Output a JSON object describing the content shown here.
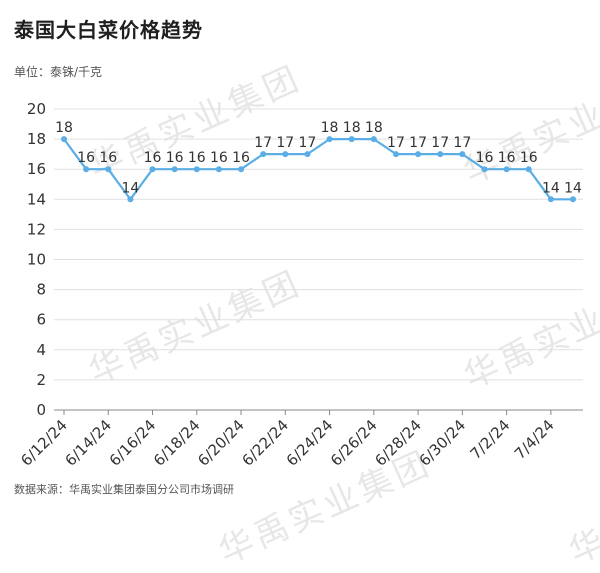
{
  "title": "泰国大白菜价格趋势",
  "unit_label": "单位：泰铢/千克",
  "source": "数据来源：华禹实业集团泰国分公司市场调研",
  "watermark": "华禹实业集团",
  "colors": {
    "line": "#5aaee5",
    "grid": "#e0e0e0",
    "axis": "#888888"
  },
  "chart_data": {
    "type": "line",
    "title": "泰国大白菜价格趋势",
    "ylabel": "单位：泰铢/千克",
    "ylim": [
      0,
      20
    ],
    "yticks": [
      0,
      2,
      4,
      6,
      8,
      10,
      12,
      14,
      16,
      18,
      20
    ],
    "grid": true,
    "x": [
      "6/12/24",
      "6/13/24",
      "6/14/24",
      "6/15/24",
      "6/16/24",
      "6/17/24",
      "6/18/24",
      "6/19/24",
      "6/20/24",
      "6/21/24",
      "6/22/24",
      "6/23/24",
      "6/24/24",
      "6/25/24",
      "6/26/24",
      "6/27/24",
      "6/28/24",
      "6/29/24",
      "6/30/24",
      "7/1/24",
      "7/2/24",
      "7/3/24",
      "7/4/24",
      "7/5/24"
    ],
    "xtick_labels": [
      "6/12/24",
      "6/14/24",
      "6/16/24",
      "6/18/24",
      "6/20/24",
      "6/22/24",
      "6/24/24",
      "6/26/24",
      "6/28/24",
      "6/30/24",
      "7/2/24",
      "7/4/24"
    ],
    "series": [
      {
        "values": [
          18,
          16,
          16,
          14,
          16,
          16,
          16,
          16,
          16,
          17,
          17,
          17,
          18,
          18,
          18,
          17,
          17,
          17,
          17,
          16,
          16,
          16,
          14,
          14
        ]
      }
    ]
  }
}
